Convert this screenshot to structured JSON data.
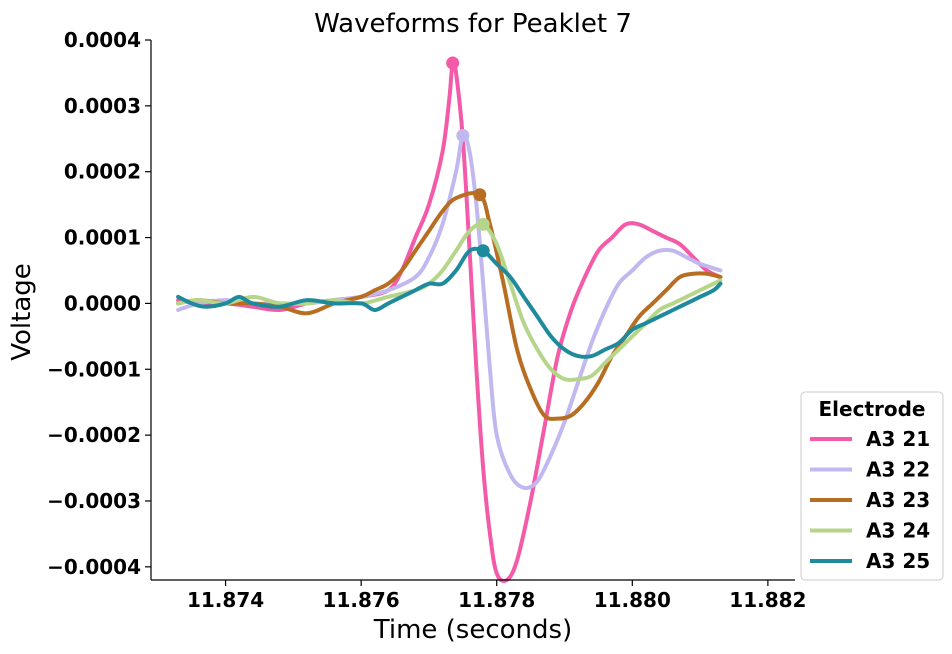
{
  "chart_data": {
    "type": "line",
    "title": "Waveforms for Peaklet 7",
    "xlabel": "Time (seconds)",
    "ylabel": "Voltage",
    "xlim": [
      11.8729,
      11.8824
    ],
    "ylim": [
      -0.00042,
      0.0004
    ],
    "x_ticks": [
      11.874,
      11.876,
      11.878,
      11.88,
      11.882
    ],
    "x_tick_labels": [
      "11.874",
      "11.876",
      "11.878",
      "11.880",
      "11.882"
    ],
    "y_ticks": [
      0.0004,
      0.0003,
      0.0002,
      0.0001,
      0.0,
      -0.0001,
      -0.0002,
      -0.0003,
      -0.0004
    ],
    "y_tick_labels": [
      "0.0004",
      "0.0003",
      "0.0002",
      "0.0001",
      "0.0000",
      "−0.0001",
      "−0.0002",
      "−0.0003",
      "−0.0004"
    ],
    "grid": false,
    "legend": {
      "title": "Electrode",
      "placement": "lower-right outside"
    },
    "series": [
      {
        "name": "A3 21",
        "color": "#f35aa8",
        "peak": [
          11.87735,
          0.000365
        ],
        "points": [
          [
            11.8733,
            5e-06
          ],
          [
            11.8736,
            0.0
          ],
          [
            11.874,
            0.0
          ],
          [
            11.8744,
            -5e-06
          ],
          [
            11.8748,
            -1e-05
          ],
          [
            11.8752,
            0.0
          ],
          [
            11.8756,
            5e-06
          ],
          [
            11.876,
            1e-05
          ],
          [
            11.8764,
            2e-05
          ],
          [
            11.8766,
            5e-05
          ],
          [
            11.8768,
            0.0001
          ],
          [
            11.877,
            0.00015
          ],
          [
            11.8772,
            0.00023
          ],
          [
            11.8773,
            0.00031
          ],
          [
            11.87735,
            0.000365
          ],
          [
            11.8774,
            0.00035
          ],
          [
            11.8775,
            0.00025
          ],
          [
            11.8776,
            8e-05
          ],
          [
            11.8777,
            -0.0001
          ],
          [
            11.8778,
            -0.00025
          ],
          [
            11.8779,
            -0.00035
          ],
          [
            11.878,
            -0.00041
          ],
          [
            11.87815,
            -0.00042
          ],
          [
            11.8783,
            -0.00039
          ],
          [
            11.8785,
            -0.0003
          ],
          [
            11.8787,
            -0.00019
          ],
          [
            11.8789,
            -8e-05
          ],
          [
            11.8791,
            -1e-05
          ],
          [
            11.8793,
            4e-05
          ],
          [
            11.8795,
            8e-05
          ],
          [
            11.8797,
            0.0001
          ],
          [
            11.8799,
            0.00012
          ],
          [
            11.8801,
            0.00012
          ],
          [
            11.8803,
            0.00011
          ],
          [
            11.8805,
            0.0001
          ],
          [
            11.8807,
            9e-05
          ],
          [
            11.8809,
            7e-05
          ],
          [
            11.8811,
            5e-05
          ],
          [
            11.8813,
            4e-05
          ]
        ]
      },
      {
        "name": "A3 22",
        "color": "#c1b8f0",
        "peak": [
          11.8775,
          0.000255
        ],
        "points": [
          [
            11.8733,
            -1e-05
          ],
          [
            11.8736,
            0.0
          ],
          [
            11.874,
            5e-06
          ],
          [
            11.8744,
            0.0
          ],
          [
            11.8748,
            0.0
          ],
          [
            11.8752,
            0.0
          ],
          [
            11.8756,
            5e-06
          ],
          [
            11.876,
            1e-05
          ],
          [
            11.8764,
            2e-05
          ],
          [
            11.8768,
            4e-05
          ],
          [
            11.877,
            7e-05
          ],
          [
            11.8772,
            0.00012
          ],
          [
            11.8774,
            0.0002
          ],
          [
            11.8775,
            0.000255
          ],
          [
            11.8776,
            0.00023
          ],
          [
            11.8777,
            0.00015
          ],
          [
            11.8778,
            3e-05
          ],
          [
            11.8779,
            -0.0001
          ],
          [
            11.878,
            -0.0002
          ],
          [
            11.8782,
            -0.00026
          ],
          [
            11.8784,
            -0.00028
          ],
          [
            11.8786,
            -0.00027
          ],
          [
            11.8788,
            -0.00023
          ],
          [
            11.879,
            -0.00018
          ],
          [
            11.8792,
            -0.00012
          ],
          [
            11.8794,
            -6e-05
          ],
          [
            11.8796,
            -1e-05
          ],
          [
            11.8798,
            3e-05
          ],
          [
            11.88,
            5e-05
          ],
          [
            11.8802,
            7e-05
          ],
          [
            11.8804,
            8e-05
          ],
          [
            11.8806,
            8e-05
          ],
          [
            11.8808,
            7e-05
          ],
          [
            11.881,
            6e-05
          ],
          [
            11.8813,
            5e-05
          ]
        ]
      },
      {
        "name": "A3 23",
        "color": "#b86e22",
        "peak": [
          11.87775,
          0.000165
        ],
        "points": [
          [
            11.8733,
            0.0
          ],
          [
            11.8736,
            5e-06
          ],
          [
            11.874,
            0.0
          ],
          [
            11.8744,
            0.0
          ],
          [
            11.8748,
            -5e-06
          ],
          [
            11.8752,
            -1.5e-05
          ],
          [
            11.8756,
            0.0
          ],
          [
            11.876,
            1e-05
          ],
          [
            11.8762,
            2e-05
          ],
          [
            11.8764,
            3e-05
          ],
          [
            11.8766,
            5e-05
          ],
          [
            11.8768,
            8e-05
          ],
          [
            11.877,
            0.00011
          ],
          [
            11.8772,
            0.00014
          ],
          [
            11.8774,
            0.00016
          ],
          [
            11.87775,
            0.000165
          ],
          [
            11.8779,
            0.00012
          ],
          [
            11.8781,
            3e-05
          ],
          [
            11.8783,
            -7e-05
          ],
          [
            11.8785,
            -0.00013
          ],
          [
            11.8787,
            -0.00017
          ],
          [
            11.8789,
            -0.000175
          ],
          [
            11.8791,
            -0.00017
          ],
          [
            11.8793,
            -0.00015
          ],
          [
            11.8795,
            -0.00012
          ],
          [
            11.8797,
            -8e-05
          ],
          [
            11.8799,
            -5e-05
          ],
          [
            11.8801,
            -2e-05
          ],
          [
            11.8803,
            0.0
          ],
          [
            11.8805,
            2e-05
          ],
          [
            11.8807,
            4e-05
          ],
          [
            11.8809,
            4.5e-05
          ],
          [
            11.8811,
            4.5e-05
          ],
          [
            11.8813,
            4e-05
          ]
        ]
      },
      {
        "name": "A3 24",
        "color": "#b5d68a",
        "peak": [
          11.8778,
          0.00012
        ],
        "points": [
          [
            11.8733,
            0.0
          ],
          [
            11.8736,
            5e-06
          ],
          [
            11.874,
            0.0
          ],
          [
            11.8744,
            1e-05
          ],
          [
            11.8748,
            0.0
          ],
          [
            11.8752,
            0.0
          ],
          [
            11.8756,
            5e-06
          ],
          [
            11.876,
            0.0
          ],
          [
            11.8764,
            1e-05
          ],
          [
            11.8768,
            2e-05
          ],
          [
            11.877,
            3e-05
          ],
          [
            11.8772,
            5e-05
          ],
          [
            11.8774,
            8e-05
          ],
          [
            11.8776,
            0.00011
          ],
          [
            11.8778,
            0.00012
          ],
          [
            11.878,
            9e-05
          ],
          [
            11.8782,
            3e-05
          ],
          [
            11.8784,
            -3e-05
          ],
          [
            11.8786,
            -7e-05
          ],
          [
            11.8788,
            -0.0001
          ],
          [
            11.879,
            -0.000115
          ],
          [
            11.8792,
            -0.000115
          ],
          [
            11.8794,
            -0.00011
          ],
          [
            11.8796,
            -9e-05
          ],
          [
            11.8798,
            -7e-05
          ],
          [
            11.88,
            -5e-05
          ],
          [
            11.8802,
            -3e-05
          ],
          [
            11.8804,
            -1e-05
          ],
          [
            11.8806,
            0.0
          ],
          [
            11.8808,
            1e-05
          ],
          [
            11.881,
            2e-05
          ],
          [
            11.8812,
            3e-05
          ],
          [
            11.8813,
            3.5e-05
          ]
        ]
      },
      {
        "name": "A3 25",
        "color": "#1e8a9c",
        "peak": [
          11.8778,
          8e-05
        ],
        "points": [
          [
            11.8733,
            1e-05
          ],
          [
            11.8735,
            0.0
          ],
          [
            11.8737,
            -5e-06
          ],
          [
            11.874,
            0.0
          ],
          [
            11.8742,
            1e-05
          ],
          [
            11.8744,
            0.0
          ],
          [
            11.8748,
            -5e-06
          ],
          [
            11.8752,
            5e-06
          ],
          [
            11.8756,
            0.0
          ],
          [
            11.876,
            0.0
          ],
          [
            11.8762,
            -1e-05
          ],
          [
            11.8764,
            0.0
          ],
          [
            11.8766,
            1e-05
          ],
          [
            11.8768,
            2e-05
          ],
          [
            11.877,
            3e-05
          ],
          [
            11.8772,
            3e-05
          ],
          [
            11.8774,
            5e-05
          ],
          [
            11.8776,
            8e-05
          ],
          [
            11.8778,
            8e-05
          ],
          [
            11.878,
            6e-05
          ],
          [
            11.8782,
            4e-05
          ],
          [
            11.8784,
            1e-05
          ],
          [
            11.8786,
            -2e-05
          ],
          [
            11.8788,
            -5e-05
          ],
          [
            11.879,
            -7e-05
          ],
          [
            11.8792,
            -8e-05
          ],
          [
            11.8794,
            -8e-05
          ],
          [
            11.8796,
            -7e-05
          ],
          [
            11.8798,
            -6e-05
          ],
          [
            11.88,
            -4e-05
          ],
          [
            11.8802,
            -3e-05
          ],
          [
            11.8804,
            -2e-05
          ],
          [
            11.8806,
            -1e-05
          ],
          [
            11.8808,
            0.0
          ],
          [
            11.881,
            1e-05
          ],
          [
            11.8812,
            2e-05
          ],
          [
            11.8813,
            3e-05
          ]
        ]
      }
    ]
  }
}
